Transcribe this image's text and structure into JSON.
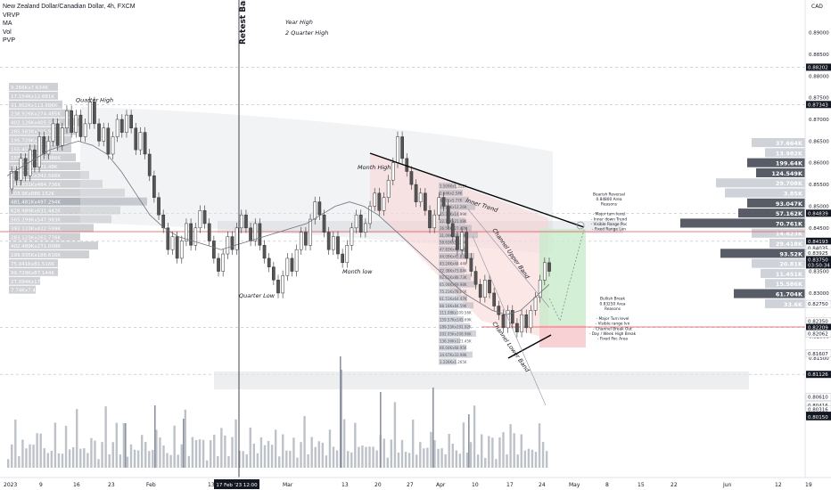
{
  "header": {
    "symbol": "New Zealand Dollar/Canadian Dollar, 4h, FXCM",
    "indicators": [
      "VRVP",
      "MA",
      "Vol",
      "PVP"
    ],
    "currency": "CAD"
  },
  "colors": {
    "candle_up": "#ffffff",
    "candle_down": "#555555",
    "trend_line": "#000000",
    "level_red": "#e05252",
    "target_green": "#c8ebcc",
    "stop_red": "#f7c9cc",
    "envelope_red": "#f9d4d4",
    "profile_grey": "#b9bcc2",
    "highlight_bg": "#131722"
  },
  "chart_data": {
    "type": "candlestick",
    "title": "New Zealand Dollar/Canadian Dollar, 4h, FXCM",
    "ylim": [
      0.7875,
      0.8975
    ],
    "y_ticks": [
      0.815,
      0.82,
      0.83,
      0.835,
      0.84,
      0.845,
      0.85,
      0.855,
      0.86,
      0.865,
      0.87,
      0.875,
      0.88,
      0.885,
      0.89
    ],
    "y_tick_labels": [
      "0.81500",
      "0.82000",
      "0.83000",
      "0.83500",
      "0.84000",
      "0.84500",
      "0.85000",
      "0.85500",
      "0.86000",
      "0.86500",
      "0.87000",
      "0.87500",
      "0.88000",
      "0.88500",
      "0.89000"
    ],
    "y_badges": [
      {
        "value": 0.88202,
        "label": "0.88202",
        "style": "dark"
      },
      {
        "value": 0.87343,
        "label": "0.87343",
        "style": "dark"
      },
      {
        "value": 0.84839,
        "label": "0.84839",
        "style": "dark"
      },
      {
        "value": 0.84193,
        "label": "0.84193",
        "style": "dark"
      },
      {
        "value": 0.84035,
        "label": "0.84035",
        "style": "light"
      },
      {
        "value": 0.83925,
        "label": "0.83925",
        "style": "light"
      },
      {
        "value": 0.83718,
        "label": "0.83718",
        "style": "light"
      },
      {
        "value": 0.83684,
        "label": "0.83684",
        "style": "dark"
      },
      {
        "value": 0.8275,
        "label": "0.82750",
        "style": "light"
      },
      {
        "value": 0.8235,
        "label": "0.82350",
        "style": "light"
      },
      {
        "value": 0.82209,
        "label": "0.82209",
        "style": "dark"
      },
      {
        "value": 0.82062,
        "label": "0.82062",
        "style": "light"
      },
      {
        "value": 0.81607,
        "label": "0.81607",
        "style": "light"
      },
      {
        "value": 0.81126,
        "label": "0.81126",
        "style": "dark"
      },
      {
        "value": 0.8061,
        "label": "0.80610",
        "style": "light"
      },
      {
        "value": 0.80416,
        "label": "0.80416",
        "style": "light"
      },
      {
        "value": 0.80316,
        "label": "0.80316",
        "style": "light"
      },
      {
        "value": 0.80185,
        "label": "0.80185",
        "style": "dark"
      },
      {
        "value": 0.80156,
        "label": "0.80156",
        "style": "dark"
      },
      {
        "value": 0.8015,
        "label": "0.80150",
        "style": "dark"
      }
    ],
    "current_price": {
      "value": 0.8375,
      "label": "0.83750",
      "countdown": "03:50:34"
    },
    "x_ticks": [
      {
        "pos": 0,
        "label": "2023"
      },
      {
        "pos": 40,
        "label": "9"
      },
      {
        "pos": 78,
        "label": "16"
      },
      {
        "pos": 117,
        "label": "23"
      },
      {
        "pos": 160,
        "label": "Feb"
      },
      {
        "pos": 229,
        "label": "13"
      },
      {
        "pos": 313,
        "label": "Mar"
      },
      {
        "pos": 379,
        "label": "13"
      },
      {
        "pos": 416,
        "label": "20"
      },
      {
        "pos": 452,
        "label": "27"
      },
      {
        "pos": 485,
        "label": "Apr"
      },
      {
        "pos": 525,
        "label": "10"
      },
      {
        "pos": 564,
        "label": "17"
      },
      {
        "pos": 600,
        "label": "24"
      },
      {
        "pos": 634,
        "label": "May"
      },
      {
        "pos": 675,
        "label": "8"
      },
      {
        "pos": 711,
        "label": "15"
      },
      {
        "pos": 748,
        "label": "22"
      },
      {
        "pos": 807,
        "label": "Jun"
      },
      {
        "pos": 865,
        "label": "12"
      },
      {
        "pos": 899,
        "label": "19"
      }
    ],
    "x_highlight": {
      "pos": 264,
      "label": "17 Feb '23  12:00"
    },
    "price_path": [
      0.854,
      0.858,
      0.856,
      0.861,
      0.857,
      0.863,
      0.859,
      0.866,
      0.862,
      0.865,
      0.869,
      0.864,
      0.868,
      0.872,
      0.867,
      0.871,
      0.866,
      0.869,
      0.874,
      0.869,
      0.865,
      0.868,
      0.862,
      0.866,
      0.87,
      0.867,
      0.871,
      0.868,
      0.863,
      0.867,
      0.862,
      0.857,
      0.852,
      0.848,
      0.845,
      0.84,
      0.843,
      0.838,
      0.842,
      0.846,
      0.841,
      0.845,
      0.849,
      0.846,
      0.842,
      0.838,
      0.835,
      0.839,
      0.843,
      0.84,
      0.845,
      0.848,
      0.845,
      0.842,
      0.846,
      0.841,
      0.838,
      0.836,
      0.833,
      0.83,
      0.834,
      0.838,
      0.835,
      0.84,
      0.844,
      0.841,
      0.847,
      0.851,
      0.848,
      0.844,
      0.84,
      0.843,
      0.839,
      0.837,
      0.841,
      0.845,
      0.848,
      0.844,
      0.846,
      0.85,
      0.853,
      0.849,
      0.852,
      0.856,
      0.86,
      0.866,
      0.861,
      0.858,
      0.855,
      0.851,
      0.853,
      0.849,
      0.845,
      0.848,
      0.852,
      0.85,
      0.846,
      0.843,
      0.84,
      0.844,
      0.838,
      0.835,
      0.832,
      0.829,
      0.833,
      0.83,
      0.827,
      0.825,
      0.822,
      0.826,
      0.823,
      0.821,
      0.825,
      0.822,
      0.826,
      0.829,
      0.833,
      0.837,
      0.835
    ],
    "moving_average": [
      0.857,
      0.859,
      0.861,
      0.863,
      0.864,
      0.865,
      0.864,
      0.862,
      0.858,
      0.853,
      0.848,
      0.845,
      0.843,
      0.842,
      0.841,
      0.84,
      0.841,
      0.842,
      0.843,
      0.844,
      0.845,
      0.846,
      0.848,
      0.85,
      0.851,
      0.85,
      0.848,
      0.845,
      0.842,
      0.839,
      0.836,
      0.833,
      0.83,
      0.828,
      0.826,
      0.825,
      0.826,
      0.829,
      0.832
    ],
    "volume_path": [
      0.35,
      0.55,
      0.8,
      0.4,
      0.6,
      0.3,
      0.7,
      0.45,
      0.5,
      0.9,
      0.35,
      0.6,
      0.4,
      0.75,
      0.5,
      0.3,
      0.65,
      0.55,
      0.4,
      0.85,
      0.5,
      0.35,
      0.6,
      0.7,
      0.45,
      0.3,
      0.55,
      0.95,
      0.4,
      0.5,
      0.65,
      0.35,
      0.8,
      0.45,
      0.55,
      0.3,
      0.6,
      0.7,
      0.4,
      0.5
    ],
    "annotations": [
      {
        "text": "Year High",
        "x": 320,
        "price": 0.892,
        "italic": true
      },
      {
        "text": "2 Quarter High",
        "x": 320,
        "price": 0.8895,
        "italic": true
      },
      {
        "text": "Quarter High",
        "x": 85,
        "price": 0.874,
        "italic": true
      },
      {
        "text": "Month High",
        "x": 401,
        "price": 0.8585,
        "italic": true
      },
      {
        "text": "Month low",
        "x": 384,
        "price": 0.8345,
        "italic": true
      },
      {
        "text": "Quarter Low",
        "x": 268,
        "price": 0.829,
        "italic": true
      },
      {
        "text": "Inner Trend",
        "x": 522,
        "price": 0.851,
        "italic": true,
        "rotate": 18
      },
      {
        "text": "Channel Upper Band",
        "x": 552,
        "price": 0.8445,
        "italic": true,
        "rotate": 55
      },
      {
        "text": "Channel Lower Band",
        "x": 552,
        "price": 0.823,
        "italic": true,
        "rotate": 55
      }
    ],
    "notes": [
      {
        "lines": [
          "Bearish Reversal",
          "0.84800 Area",
          "Reasons",
          "",
          "- Major turn level",
          "- Inner down Trend",
          "- Visible Range Poc",
          "- Fixed Range Lvn"
        ],
        "x": 683,
        "price": 0.8525
      },
      {
        "lines": [
          "Bullish Break",
          "0.83250 Area",
          "Reasons",
          "",
          "- Major Turn level",
          "- Visible range lvn",
          "- Channel Break Out",
          "- Day / Week High Break",
          "- Fixed Poc Area"
        ],
        "x": 687,
        "price": 0.8284
      }
    ],
    "retest_label": "Retest Bar",
    "left_profile_labels": [
      "9.266Kx7.634K",
      "17.154Kx12.681K",
      "91.962Kx113.686K",
      "238.926Kx274.485K",
      "402.126Kx405.545K",
      "285.583Kx305.999K",
      "195.729Kx170.497K",
      "155.457Kx139.08K",
      "155.271Kx162.486K",
      "250.156Kx281.48K",
      "369.191Kx342.566K",
      "441.631Kx484.736K",
      "603.9Kx686.152K",
      "481.481Kx497.294K",
      "628.989Kx631.442K",
      "565.299Kx547.983K",
      "393.123Kx422.599K",
      "283.123Kx262.778K",
      "402.489Kx271.008K",
      "199.935Kx188.616K",
      "75.041Kx81.516K",
      "99.729Kx87.144K",
      "27.094Kx17.758K",
      "7.74Kx7.431K"
    ],
    "right_profile_labels": [
      "37.664K",
      "13.982K",
      "199.64K",
      "124.549K",
      "29.708K",
      "3.85K",
      "93.047K",
      "57.162K",
      "70.761K",
      "14.623K",
      "29.418K",
      "93.52K",
      "20.81K",
      "11.451K",
      "15.586K",
      "61.704K",
      "33.6K"
    ],
    "inner_profile_labels": [
      "1.509Kx1.312K",
      "2.64Kx2.54K",
      "6.07Kx5.77K",
      "13.56Kx12.26K",
      "15.72Kx14.99K",
      "22.18Kx21.08K",
      "26.54Kx27.47K",
      "31.09Kx33.99K",
      "58.63Kx59.54K",
      "47.83Kx49.42K",
      "44.09Kx45.82K",
      "43.24Kx44.44K",
      "72.38Kx73.04K",
      "92.61Kx88.73K",
      "65.04Kx69.98K",
      "75.21Kx78.06K",
      "61.51Kx64.47K",
      "88.16Kx84.59K",
      "111.08Kx109.56K",
      "159.57Kx145.69K",
      "189.25Kx191.02K",
      "202.05Kx208.96K",
      "136.36Kx121.45K",
      "66.04Kx68.95K",
      "34.67Kx33.98K",
      "1.226Kx1.265K"
    ]
  }
}
